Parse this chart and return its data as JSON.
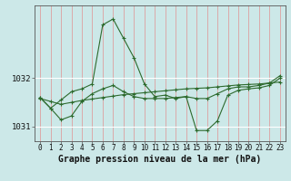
{
  "title": "Graphe pression niveau de la mer (hPa)",
  "hours": [
    0,
    1,
    2,
    3,
    4,
    5,
    6,
    7,
    8,
    9,
    10,
    11,
    12,
    13,
    14,
    15,
    16,
    17,
    18,
    19,
    20,
    21,
    22,
    23
  ],
  "y_trend": [
    1031.58,
    1031.52,
    1031.46,
    1031.5,
    1031.54,
    1031.57,
    1031.6,
    1031.63,
    1031.66,
    1031.68,
    1031.7,
    1031.72,
    1031.74,
    1031.76,
    1031.78,
    1031.79,
    1031.8,
    1031.82,
    1031.84,
    1031.86,
    1031.87,
    1031.88,
    1031.9,
    1031.92
  ],
  "y_high": [
    1031.6,
    1031.38,
    1031.55,
    1031.72,
    1031.78,
    1031.88,
    1033.1,
    1033.22,
    1032.82,
    1032.42,
    1031.88,
    1031.62,
    1031.65,
    1031.58,
    1031.62,
    1031.58,
    1031.58,
    1031.68,
    1031.78,
    1031.82,
    1031.82,
    1031.85,
    1031.9,
    1032.05
  ],
  "y_low": [
    1031.6,
    1031.38,
    1031.14,
    1031.22,
    1031.52,
    1031.68,
    1031.78,
    1031.85,
    1031.72,
    1031.62,
    1031.58,
    1031.58,
    1031.58,
    1031.6,
    1031.62,
    1030.92,
    1030.92,
    1031.12,
    1031.65,
    1031.75,
    1031.78,
    1031.8,
    1031.85,
    1032.0
  ],
  "ylim_min": 1030.7,
  "ylim_max": 1033.5,
  "yticks": [
    1031,
    1032
  ],
  "line_color": "#2d6a2d",
  "bg_color": "#cce8e8",
  "vgrid_color": "#dda0a0",
  "hgrid_color": "#ffffff",
  "title_fontsize": 7.0,
  "tick_fontsize": 5.5
}
